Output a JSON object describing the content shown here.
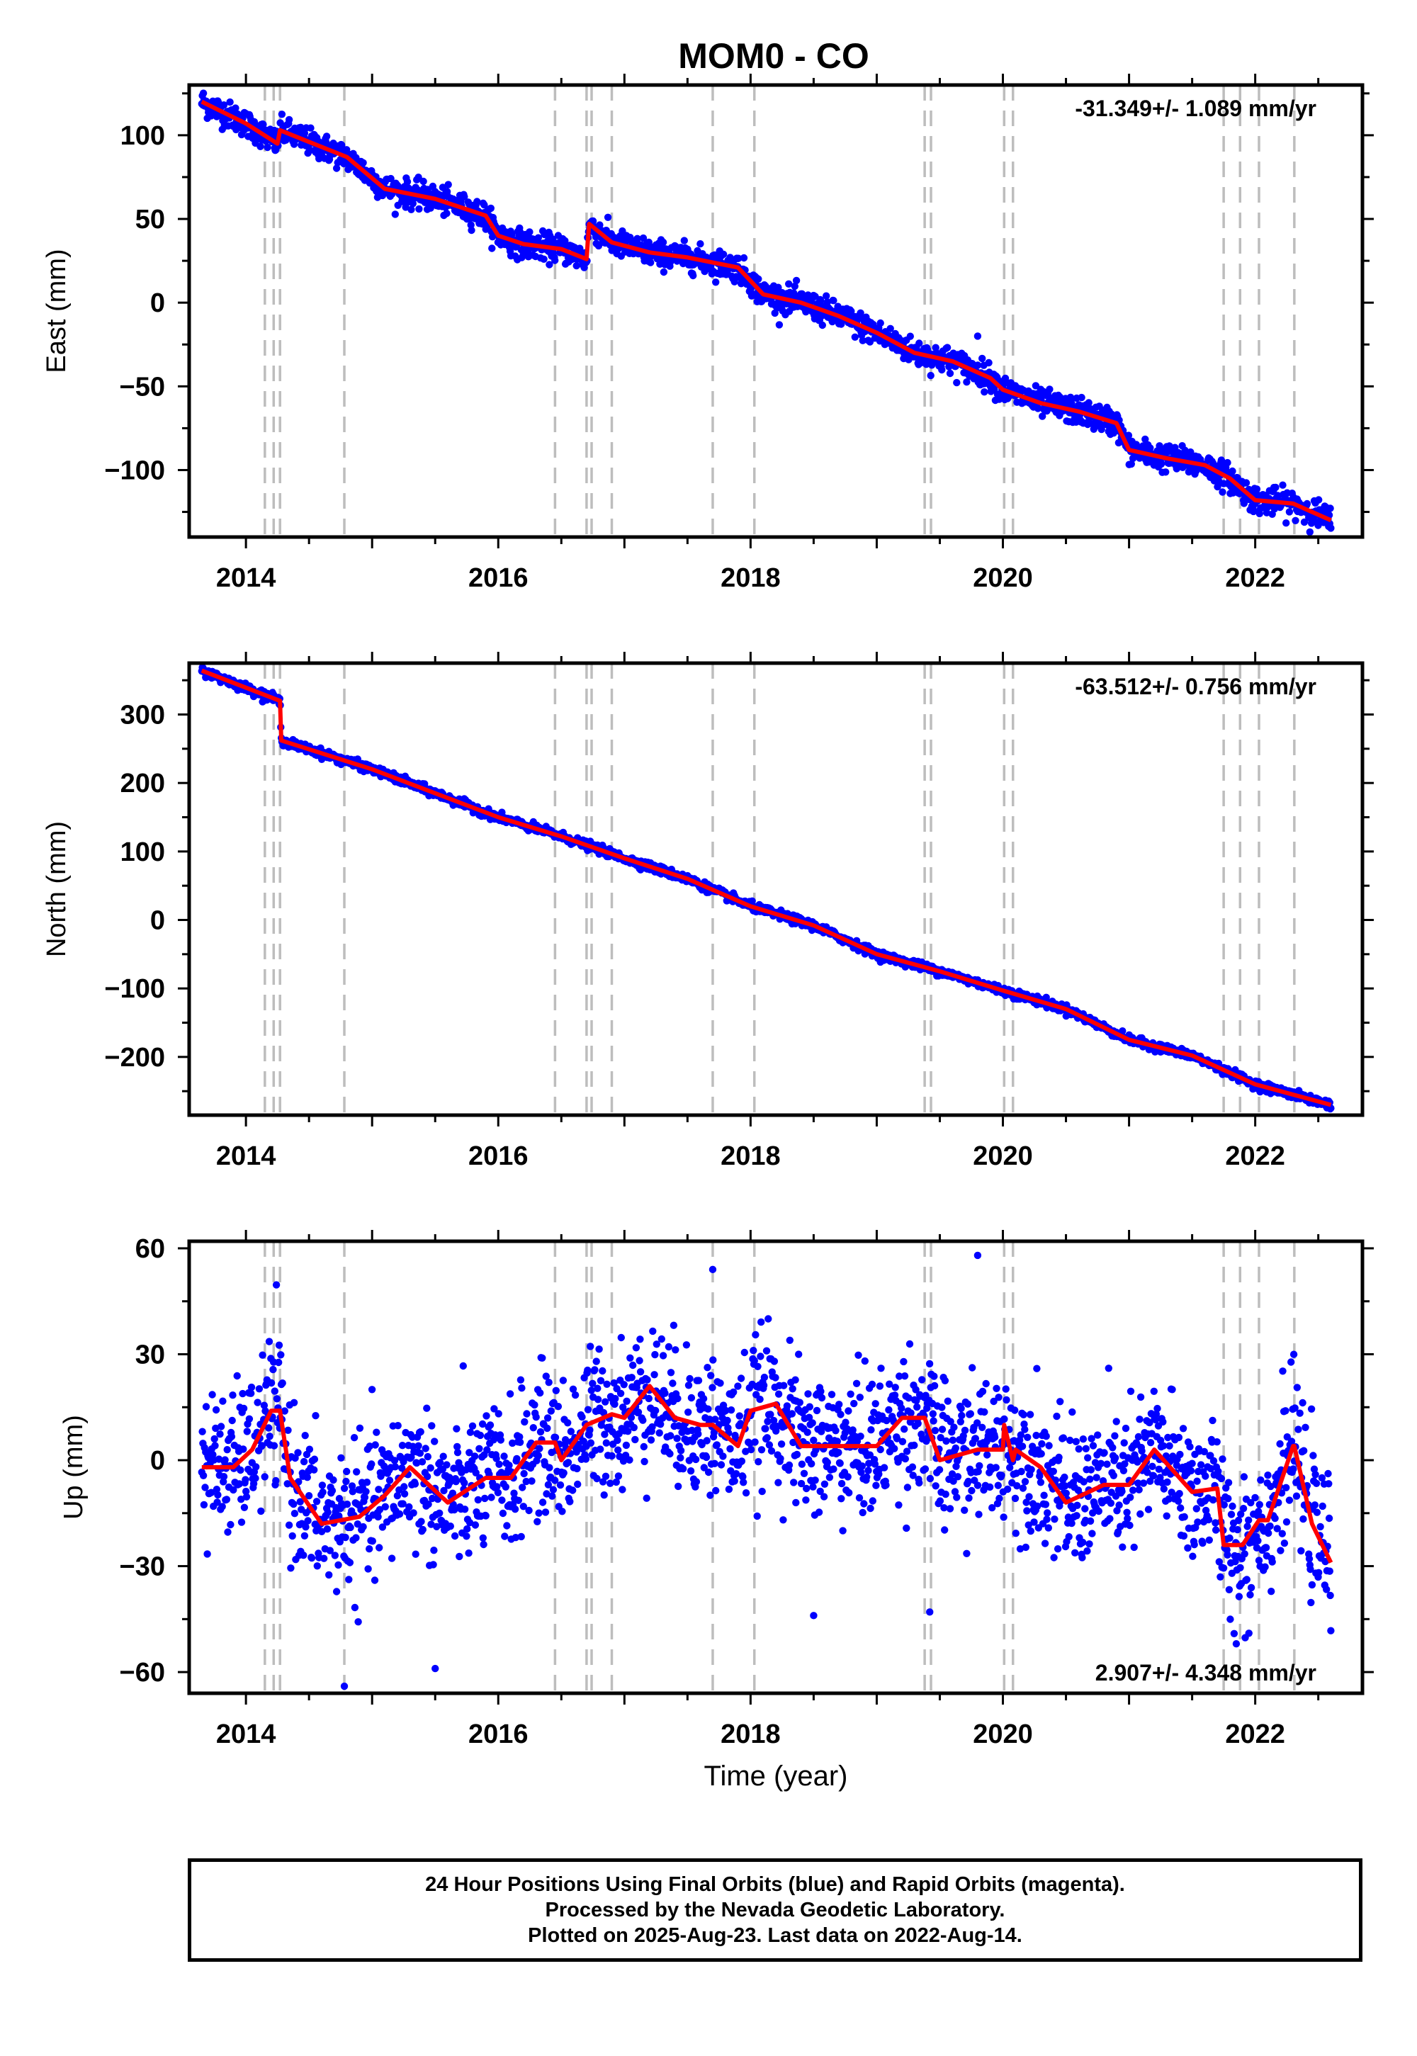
{
  "title": "MOM0 - CO",
  "colors": {
    "data": "#0000ff",
    "model": "#ff0000",
    "events": "#bdbdbd",
    "frame": "#000000"
  },
  "chart_data": [
    {
      "type": "scatter",
      "panel": "east",
      "ylabel": "East (mm)",
      "xlabel": "",
      "xlim": [
        2013.55,
        2022.85
      ],
      "ylim": [
        -140,
        130
      ],
      "yticks": [
        100,
        50,
        0,
        -50,
        -100
      ],
      "xticks": [
        2014,
        2016,
        2018,
        2020,
        2022
      ],
      "rate_label": "-31.349+/- 1.089 mm/yr",
      "rate_position": "top-right",
      "grid": false,
      "event_lines": [
        2014.15,
        2014.22,
        2014.27,
        2014.78,
        2016.45,
        2016.7,
        2016.74,
        2016.9,
        2017.7,
        2018.03,
        2019.38,
        2019.43,
        2020.01,
        2020.08,
        2021.75,
        2021.88,
        2022.03,
        2022.31
      ],
      "model": {
        "x": [
          2013.65,
          2014.0,
          2014.25,
          2014.27,
          2014.5,
          2014.8,
          2015.1,
          2015.5,
          2015.9,
          2016.0,
          2016.2,
          2016.5,
          2016.7,
          2016.72,
          2016.9,
          2017.2,
          2017.5,
          2017.9,
          2018.1,
          2018.4,
          2018.7,
          2019.0,
          2019.3,
          2019.6,
          2019.9,
          2020.0,
          2020.3,
          2020.6,
          2020.9,
          2021.0,
          2021.3,
          2021.6,
          2021.8,
          2022.0,
          2022.3,
          2022.6
        ],
        "y": [
          120,
          107,
          95,
          103,
          96,
          87,
          68,
          62,
          52,
          40,
          35,
          32,
          26,
          47,
          36,
          30,
          27,
          21,
          5,
          0,
          -8,
          -18,
          -30,
          -35,
          -45,
          -52,
          -60,
          -65,
          -72,
          -88,
          -93,
          -97,
          -105,
          -118,
          -120,
          -130
        ]
      },
      "noise": 4,
      "outliers": [
        {
          "x": 2019.8,
          "y": -20
        },
        {
          "x": 2016.1,
          "y": 28
        }
      ]
    },
    {
      "type": "scatter",
      "panel": "north",
      "ylabel": "North (mm)",
      "xlabel": "",
      "xlim": [
        2013.55,
        2022.85
      ],
      "ylim": [
        -285,
        375
      ],
      "yticks": [
        300,
        200,
        100,
        0,
        -100,
        -200
      ],
      "xticks": [
        2014,
        2016,
        2018,
        2020,
        2022
      ],
      "rate_label": "-63.512+/- 0.756 mm/yr",
      "rate_position": "top-right",
      "grid": false,
      "event_lines": [
        2014.15,
        2014.22,
        2014.27,
        2014.78,
        2016.45,
        2016.7,
        2016.74,
        2016.9,
        2017.7,
        2018.03,
        2019.38,
        2019.43,
        2020.01,
        2020.08,
        2021.75,
        2021.88,
        2022.03,
        2022.31
      ],
      "model": {
        "x": [
          2013.65,
          2014.27,
          2014.28,
          2015.0,
          2016.0,
          2016.5,
          2017.0,
          2017.5,
          2018.0,
          2018.5,
          2019.0,
          2019.5,
          2020.0,
          2020.5,
          2021.0,
          2021.5,
          2022.0,
          2022.6
        ],
        "y": [
          364,
          320,
          262,
          220,
          150,
          122,
          90,
          60,
          20,
          -8,
          -50,
          -75,
          -103,
          -130,
          -175,
          -198,
          -240,
          -270
        ]
      },
      "noise": 3,
      "outliers": []
    },
    {
      "type": "scatter",
      "panel": "up",
      "ylabel": "Up (mm)",
      "xlabel": "Time (year)",
      "xlim": [
        2013.55,
        2022.85
      ],
      "ylim": [
        -66,
        62
      ],
      "yticks": [
        60,
        30,
        0,
        -30,
        -60
      ],
      "xticks": [
        2014,
        2016,
        2018,
        2020,
        2022
      ],
      "rate_label": "2.907+/- 4.348 mm/yr",
      "rate_position": "bottom-right",
      "grid": false,
      "event_lines": [
        2014.15,
        2014.22,
        2014.27,
        2014.78,
        2016.45,
        2016.7,
        2016.74,
        2016.9,
        2017.7,
        2018.03,
        2019.38,
        2019.43,
        2020.01,
        2020.08,
        2021.75,
        2021.88,
        2022.03,
        2022.31
      ],
      "model": {
        "x": [
          2013.65,
          2013.9,
          2014.05,
          2014.2,
          2014.27,
          2014.35,
          2014.6,
          2014.9,
          2015.1,
          2015.3,
          2015.6,
          2015.9,
          2016.1,
          2016.3,
          2016.45,
          2016.5,
          2016.7,
          2016.9,
          2017.0,
          2017.2,
          2017.4,
          2017.6,
          2017.7,
          2017.9,
          2018.0,
          2018.2,
          2018.4,
          2018.5,
          2018.8,
          2019.0,
          2019.2,
          2019.38,
          2019.5,
          2019.8,
          2020.0,
          2020.01,
          2020.08,
          2020.1,
          2020.3,
          2020.5,
          2020.8,
          2021.0,
          2021.2,
          2021.5,
          2021.7,
          2021.75,
          2021.9,
          2022.03,
          2022.1,
          2022.3,
          2022.31,
          2022.45,
          2022.6
        ],
        "y": [
          -2,
          -2,
          3,
          14,
          14,
          -5,
          -18,
          -16,
          -10,
          -2,
          -12,
          -5,
          -5,
          5,
          5,
          0,
          10,
          13,
          12,
          21,
          12,
          10,
          10,
          4,
          14,
          16,
          4,
          4,
          4,
          4,
          12,
          12,
          0,
          3,
          3,
          10,
          0,
          3,
          -2,
          -12,
          -7,
          -7,
          3,
          -9,
          -8,
          -24,
          -24,
          -17,
          -17,
          4,
          4,
          -18,
          -29
        ]
      },
      "noise": 10,
      "outliers": [
        {
          "x": 2019.8,
          "y": 58
        },
        {
          "x": 2017.7,
          "y": 54
        },
        {
          "x": 2014.78,
          "y": -64
        },
        {
          "x": 2015.5,
          "y": -59
        },
        {
          "x": 2021.85,
          "y": -52
        },
        {
          "x": 2021.95,
          "y": -49
        },
        {
          "x": 2019.42,
          "y": -43
        },
        {
          "x": 2018.5,
          "y": -44
        }
      ]
    }
  ],
  "footer": {
    "line1": "24 Hour Positions Using Final Orbits (blue) and Rapid Orbits (magenta).",
    "line2": "Processed by the Nevada Geodetic Laboratory.",
    "line3": "Plotted on 2025-Aug-23. Last data on 2022-Aug-14."
  }
}
